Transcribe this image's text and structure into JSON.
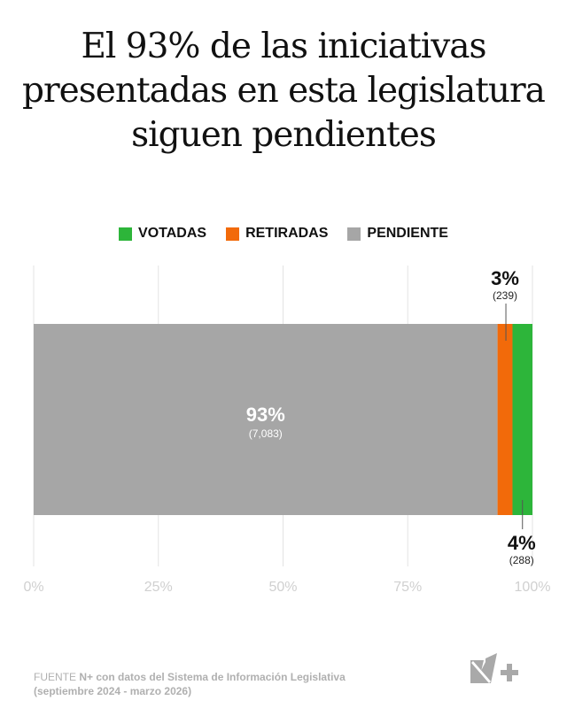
{
  "chart_data": {
    "type": "bar",
    "orientation": "horizontal-stacked",
    "title": "El 93% de las iniciativas presentadas en esta legislatura siguen pendientes",
    "series": [
      {
        "name": "PENDIENTE",
        "value": 93,
        "count": "7,083",
        "label": "93%",
        "count_label": "(7,083)",
        "color": "#a6a6a6"
      },
      {
        "name": "RETIRADAS",
        "value": 3,
        "count": "239",
        "label": "3%",
        "count_label": "(239)",
        "color": "#f26a0a"
      },
      {
        "name": "VOTADAS",
        "value": 4,
        "count": "288",
        "label": "4%",
        "count_label": "(288)",
        "color": "#2db53a"
      }
    ],
    "legend_order": [
      "VOTADAS",
      "RETIRADAS",
      "PENDIENTE"
    ],
    "legend_placement": "top",
    "xlim": [
      0,
      100
    ],
    "ticks": [
      "0%",
      "25%",
      "50%",
      "75%",
      "100%"
    ],
    "tick_values": [
      0,
      25,
      50,
      75,
      100
    ],
    "grid": true
  },
  "legend": [
    {
      "label": "VOTADAS",
      "color": "#2db53a"
    },
    {
      "label": "RETIRADAS",
      "color": "#f26a0a"
    },
    {
      "label": "PENDIENTE",
      "color": "#a6a6a6"
    }
  ],
  "footer": {
    "prefix": "FUENTE",
    "source": "N+ con datos del Sistema de Información Legislativa",
    "period": "(septiembre 2024 - marzo 2026)"
  },
  "logo": "N+"
}
